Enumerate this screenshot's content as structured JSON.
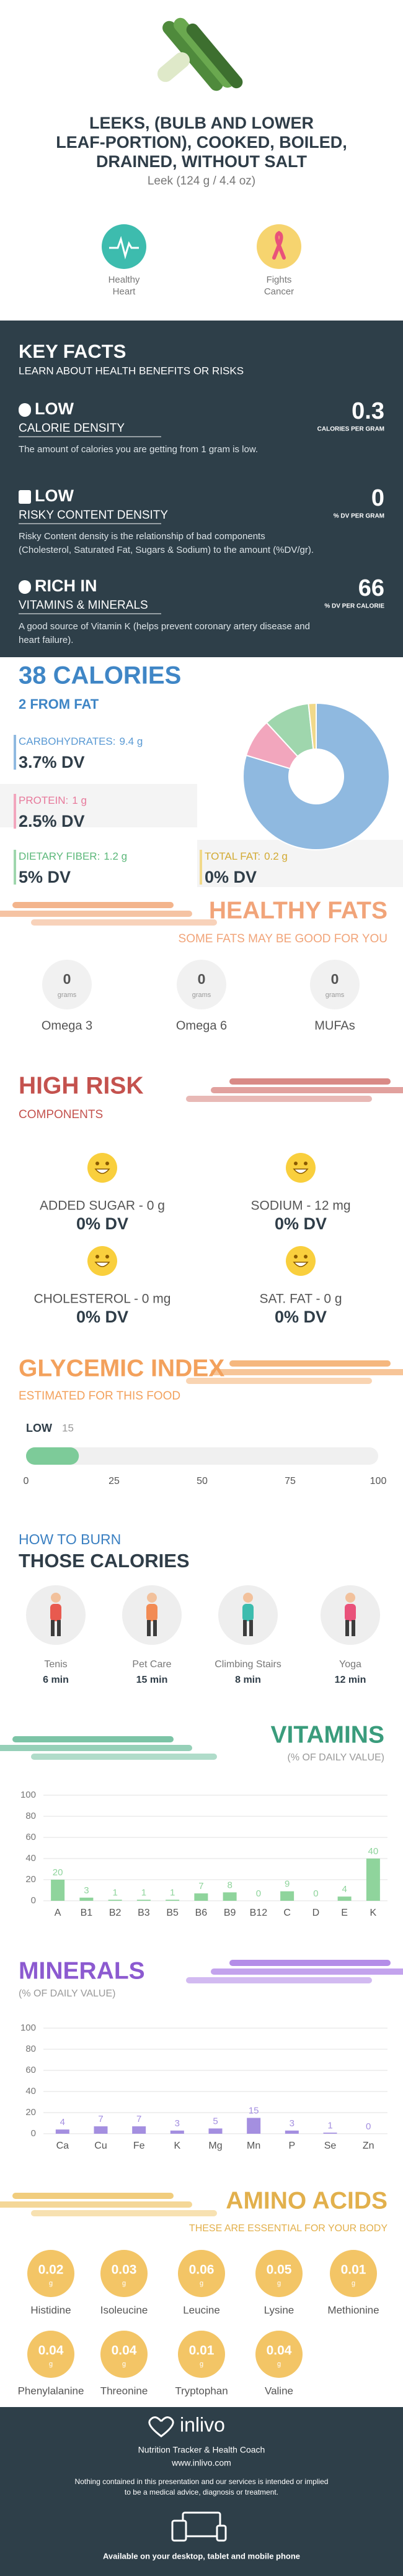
{
  "header": {
    "title_lines": [
      "LEEKS, (BULB AND LOWER",
      "LEAF-PORTION), COOKED, BOILED,",
      "DRAINED, WITHOUT SALT"
    ],
    "serving": "Leek (124 g / 4.4 oz)",
    "badges": [
      [
        "Healthy",
        "Heart"
      ],
      [
        "Fights",
        "Cancer"
      ]
    ]
  },
  "key_facts": {
    "title": "KEY FACTS",
    "subtitle": "LEARN ABOUT HEALTH BENEFITS OR RISKS",
    "items": [
      {
        "level": "LOW",
        "name": "CALORIE DENSITY",
        "value": 0.3,
        "unit": "CALORIES PER GRAM",
        "description": [
          "The amount of calories you are getting from 1 gram is low."
        ]
      },
      {
        "level": "LOW",
        "name": "RISKY CONTENT DENSITY",
        "value": 0,
        "unit": "% DV PER GRAM",
        "description": [
          "Risky Content density is the relationship of bad components",
          "(Cholesterol, Saturated Fat, Sugars & Sodium) to the amount (%DV/gr)."
        ]
      },
      {
        "level": "RICH IN",
        "name": "VITAMINS & MINERALS",
        "value": 66,
        "unit": "% DV PER CALORIE",
        "description": [
          "A good source of Vitamin K (helps prevent coronary artery disease and",
          "heart failure)."
        ]
      }
    ]
  },
  "calories": {
    "title": "38 CALORIES",
    "subtitle": "2 FROM FAT",
    "dv": [
      "3.7% DV",
      "2.5% DV",
      "5% DV",
      "0% DV"
    ]
  },
  "chart_data": [
    {
      "type": "pie",
      "categories": [
        "CARBOHYDRATES:",
        "PROTEIN:",
        "DIETARY FIBER:",
        "TOTAL FAT:"
      ],
      "values": [
        9.4,
        1,
        1.2,
        0.2
      ],
      "value_labels": [
        "9.4 g",
        "1 g",
        "1.2 g",
        "0.2 g"
      ],
      "colors": [
        "#8fb9e0",
        "#f2a6bd",
        "#9fd6ad",
        "#f1d98a"
      ]
    },
    {
      "type": "bar",
      "title": "VITAMINS",
      "subtitle": "(% OF DAILY VALUE)",
      "categories": [
        "A",
        "B1",
        "B2",
        "B3",
        "B5",
        "B6",
        "B9",
        "B12",
        "C",
        "D",
        "E",
        "K"
      ],
      "values": [
        20,
        3,
        1,
        1,
        1,
        7,
        8,
        0,
        9,
        0,
        4,
        40
      ],
      "color": "#8fd49c",
      "ylim": [
        0,
        100
      ],
      "yticks": [
        0,
        20,
        40,
        60,
        80,
        100
      ],
      "grid": true
    },
    {
      "type": "bar",
      "title": "MINERALS",
      "subtitle": "(% OF DAILY VALUE)",
      "categories": [
        "Ca",
        "Cu",
        "Fe",
        "K",
        "Mg",
        "Mn",
        "P",
        "Se",
        "Zn"
      ],
      "values": [
        4,
        7,
        7,
        3,
        5,
        15,
        3,
        1,
        0
      ],
      "color": "#a48fe0",
      "ylim": [
        0,
        100
      ],
      "yticks": [
        0,
        20,
        40,
        60,
        80,
        100
      ],
      "grid": true
    }
  ],
  "healthy_fats": {
    "title": "HEALTHY FATS",
    "subtitle": "SOME FATS MAY BE GOOD FOR YOU",
    "items": [
      {
        "value": 0,
        "unit": "grams",
        "name": "Omega 3"
      },
      {
        "value": 0,
        "unit": "grams",
        "name": "Omega 6"
      },
      {
        "value": 0,
        "unit": "grams",
        "name": "MUFAs"
      }
    ]
  },
  "high_risk": {
    "title": "HIGH RISK",
    "subtitle": "COMPONENTS",
    "items": [
      {
        "label": "ADDED SUGAR - 0 g",
        "dv": "0% DV"
      },
      {
        "label": "SODIUM - 12 mg",
        "dv": "0% DV"
      },
      {
        "label": "CHOLESTEROL - 0 mg",
        "dv": "0% DV"
      },
      {
        "label": "SAT. FAT - 0 g",
        "dv": "0% DV"
      }
    ]
  },
  "glycemic_index": {
    "title": "GLYCEMIC INDEX",
    "subtitle": "ESTIMATED FOR THIS FOOD",
    "level": "LOW",
    "value": 15,
    "ticks": [
      0,
      25,
      50,
      75,
      100
    ]
  },
  "burn": {
    "title_top": "HOW TO BURN",
    "title": "THOSE CALORIES",
    "activities": [
      {
        "name": "Tenis",
        "duration": "6 min"
      },
      {
        "name": "Pet Care",
        "duration": "15 min"
      },
      {
        "name": "Climbing Stairs",
        "duration": "8 min"
      },
      {
        "name": "Yoga",
        "duration": "12 min"
      }
    ]
  },
  "amino_acids": {
    "title": "AMINO ACIDS",
    "subtitle": "THESE ARE ESSENTIAL FOR YOUR BODY",
    "items": [
      {
        "name": "Histidine",
        "value": 0.02,
        "unit": "g"
      },
      {
        "name": "Isoleucine",
        "value": 0.03,
        "unit": "g"
      },
      {
        "name": "Leucine",
        "value": 0.06,
        "unit": "g"
      },
      {
        "name": "Lysine",
        "value": 0.05,
        "unit": "g"
      },
      {
        "name": "Methionine",
        "value": 0.01,
        "unit": "g"
      },
      {
        "name": "Phenylalanine",
        "value": 0.04,
        "unit": "g"
      },
      {
        "name": "Threonine",
        "value": 0.04,
        "unit": "g"
      },
      {
        "name": "Tryptophan",
        "value": 0.01,
        "unit": "g"
      },
      {
        "name": "Valine",
        "value": 0.04,
        "unit": "g"
      }
    ]
  },
  "footer": {
    "brand": "inlivo",
    "tagline": "Nutrition Tracker & Health Coach",
    "url": "www.inlivo.com",
    "disclaimer": [
      "Nothing contained in this presentation and our services is intended or implied",
      "to be a medical advice, diagnosis or treatment."
    ],
    "availability": "Available on your desktop, tablet and mobile phone"
  }
}
